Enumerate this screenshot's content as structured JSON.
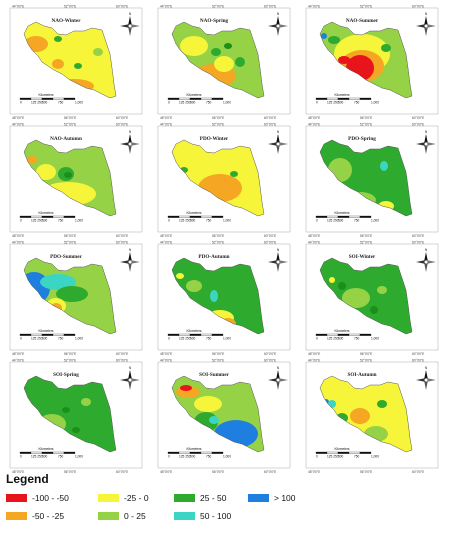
{
  "panels": [
    {
      "title": "NAO-Winter",
      "base": "yellow",
      "blobs": [
        [
          "orange",
          30,
          40,
          12,
          8
        ],
        [
          "orange",
          68,
          82,
          20,
          7
        ],
        [
          "orange",
          52,
          60,
          6,
          5
        ],
        [
          "green",
          52,
          35,
          4,
          3
        ],
        [
          "green",
          72,
          62,
          4,
          3
        ],
        [
          "lgreen",
          92,
          48,
          5,
          4
        ]
      ]
    },
    {
      "title": "NAO-Spring",
      "base": "lgreen",
      "blobs": [
        [
          "yellow",
          40,
          42,
          14,
          10
        ],
        [
          "orange",
          60,
          72,
          22,
          12
        ],
        [
          "yellow",
          70,
          60,
          10,
          8
        ],
        [
          "green",
          62,
          48,
          5,
          4
        ],
        [
          "dgreen",
          74,
          42,
          4,
          3
        ],
        [
          "green",
          86,
          58,
          5,
          5
        ]
      ]
    },
    {
      "title": "NAO-Summer",
      "base": "lgreen",
      "blobs": [
        [
          "yellow",
          60,
          50,
          28,
          20
        ],
        [
          "orange",
          60,
          62,
          22,
          16
        ],
        [
          "red",
          58,
          64,
          14,
          13
        ],
        [
          "red",
          42,
          56,
          6,
          4
        ],
        [
          "green",
          84,
          44,
          5,
          4
        ],
        [
          "blue",
          22,
          32,
          3,
          3
        ],
        [
          "green",
          32,
          36,
          6,
          4
        ]
      ]
    },
    {
      "title": "NAO-Autumn",
      "base": "lgreen",
      "blobs": [
        [
          "yellow",
          62,
          72,
          28,
          12
        ],
        [
          "yellow",
          40,
          50,
          10,
          8
        ],
        [
          "orange",
          26,
          38,
          5,
          4
        ],
        [
          "green",
          60,
          52,
          8,
          7
        ],
        [
          "dgreen",
          62,
          53,
          4,
          3
        ]
      ]
    },
    {
      "title": "PDO-Winter",
      "base": "yellow",
      "blobs": [
        [
          "orange",
          66,
          66,
          22,
          14
        ],
        [
          "orange",
          46,
          70,
          8,
          6
        ],
        [
          "red",
          36,
          74,
          3,
          3
        ],
        [
          "green",
          30,
          48,
          4,
          3
        ],
        [
          "green",
          80,
          52,
          4,
          3
        ]
      ]
    },
    {
      "title": "PDO-Spring",
      "base": "green",
      "blobs": [
        [
          "lgreen",
          38,
          48,
          12,
          12
        ],
        [
          "lgreen",
          58,
          78,
          16,
          8
        ],
        [
          "yellow",
          84,
          84,
          8,
          5
        ],
        [
          "cyan",
          82,
          44,
          4,
          5
        ]
      ]
    },
    {
      "title": "PDO-Summer",
      "base": "lgreen",
      "blobs": [
        [
          "blue",
          28,
          48,
          16,
          16
        ],
        [
          "cyan",
          52,
          42,
          18,
          8
        ],
        [
          "green",
          66,
          54,
          16,
          8
        ],
        [
          "yellow",
          50,
          66,
          10,
          8
        ],
        [
          "orange",
          50,
          68,
          6,
          5
        ],
        [
          "red",
          46,
          68,
          3,
          3
        ]
      ]
    },
    {
      "title": "PDO-Autumn",
      "base": "green",
      "blobs": [
        [
          "yellow",
          66,
          78,
          14,
          8
        ],
        [
          "orange",
          74,
          84,
          8,
          6
        ],
        [
          "lgreen",
          40,
          46,
          8,
          6
        ],
        [
          "cyan",
          60,
          56,
          4,
          6
        ],
        [
          "yellow",
          26,
          36,
          4,
          3
        ]
      ]
    },
    {
      "title": "SOI-Winter",
      "base": "green",
      "blobs": [
        [
          "lgreen",
          54,
          58,
          14,
          10
        ],
        [
          "dgreen",
          40,
          46,
          4,
          4
        ],
        [
          "dgreen",
          72,
          70,
          4,
          4
        ],
        [
          "yellow",
          30,
          40,
          3,
          3
        ],
        [
          "lgreen",
          80,
          50,
          5,
          4
        ]
      ]
    },
    {
      "title": "SOI-Spring",
      "base": "green",
      "blobs": [
        [
          "lgreen",
          46,
          66,
          14,
          10
        ],
        [
          "dgreen",
          60,
          52,
          4,
          3
        ],
        [
          "dgreen",
          70,
          72,
          4,
          3
        ],
        [
          "blue",
          54,
          74,
          2,
          2
        ],
        [
          "lgreen",
          80,
          44,
          5,
          4
        ]
      ]
    },
    {
      "title": "SOI-Summer",
      "base": "lgreen",
      "blobs": [
        [
          "orange",
          34,
          34,
          12,
          6
        ],
        [
          "red",
          32,
          30,
          6,
          3
        ],
        [
          "yellow",
          54,
          46,
          14,
          8
        ],
        [
          "green",
          52,
          64,
          12,
          10
        ],
        [
          "blue",
          82,
          76,
          22,
          14
        ],
        [
          "cyan",
          60,
          62,
          5,
          4
        ]
      ]
    },
    {
      "title": "SOI-Autumn",
      "base": "yellow",
      "blobs": [
        [
          "orange",
          58,
          58,
          10,
          8
        ],
        [
          "lgreen",
          74,
          76,
          12,
          8
        ],
        [
          "green",
          40,
          60,
          6,
          5
        ],
        [
          "blue",
          24,
          44,
          3,
          3
        ],
        [
          "cyan",
          30,
          46,
          4,
          4
        ],
        [
          "green",
          80,
          46,
          5,
          4
        ],
        [
          "orange",
          40,
          70,
          5,
          4
        ]
      ]
    }
  ],
  "scale_bar": {
    "title": "Kilometers",
    "ticks": [
      "0",
      "125 250",
      "500",
      "750",
      "1,000"
    ]
  },
  "north_label": "N",
  "coords": {
    "top": [
      "44°0'0\"E",
      "52°0'0\"E",
      "60°0'0\"E"
    ],
    "bottom": [
      "48°0'0\"E",
      "56°0'0\"E",
      "60°0'0\"E"
    ]
  },
  "colors": {
    "red": "#e8141c",
    "orange": "#f5a623",
    "yellow": "#f6f53a",
    "lgreen": "#96d246",
    "green": "#2eab2e",
    "dgreen": "#1b8f1b",
    "cyan": "#3ad6c3",
    "blue": "#1f7fe0"
  },
  "legend": {
    "title": "Legend",
    "items": [
      {
        "label": "-100 - -50",
        "color": "#e8141c"
      },
      {
        "label": "-50 - -25",
        "color": "#f5a623"
      },
      {
        "label": "-25 - 0",
        "color": "#f6f53a"
      },
      {
        "label": "0 - 25",
        "color": "#96d246"
      },
      {
        "label": "25 - 50",
        "color": "#2eab2e"
      },
      {
        "label": "50 - 100",
        "color": "#3ad6c3"
      },
      {
        "label": "> 100",
        "color": "#1f7fe0"
      }
    ]
  }
}
